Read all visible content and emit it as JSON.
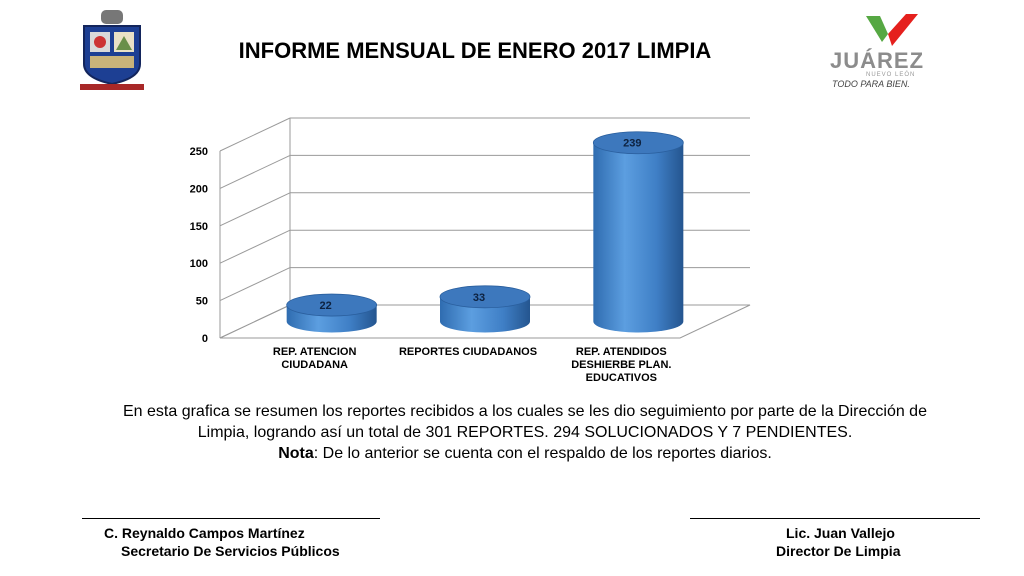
{
  "title": "INFORME MENSUAL DE ENERO 2017 LIMPIA",
  "logo": {
    "main": "JUÁREZ",
    "sub": "NUEVO LEÓN",
    "tagline": "TODO PARA BIEN.",
    "colors": [
      "#e5201d",
      "#56a843"
    ]
  },
  "chart_data": {
    "type": "bar",
    "style": "3d-cylinder",
    "categories": [
      [
        "REP. ATENCION",
        "CIUDADANA"
      ],
      [
        "REPORTES CIUDADANOS"
      ],
      [
        "REP. ATENDIDOS",
        "DESHIERBE PLAN.",
        "EDUCATIVOS"
      ]
    ],
    "values": [
      22,
      33,
      239
    ],
    "data_labels": [
      "22",
      "33",
      "239"
    ],
    "ylim": [
      0,
      250
    ],
    "yticks": [
      "0",
      "50",
      "100",
      "150",
      "200",
      "250"
    ],
    "grid": true,
    "bar_color": "#4a86c8"
  },
  "description": {
    "line1": "En esta grafica se  resumen los reportes recibidos a los cuales se les dio seguimiento por parte de la Dirección de",
    "line2": "Limpia, logrando así un total de 301 REPORTES. 294 SOLUCIONADOS Y 7 PENDIENTES.",
    "nota_label": "Nota",
    "nota_text": ": De lo anterior se cuenta con el respaldo de los reportes diarios."
  },
  "signatures": {
    "left": {
      "name": "C. Reynaldo Campos Martínez",
      "role": "Secretario De Servicios Públicos"
    },
    "right": {
      "name": "Lic. Juan Vallejo",
      "role": "Director De Limpia"
    }
  }
}
